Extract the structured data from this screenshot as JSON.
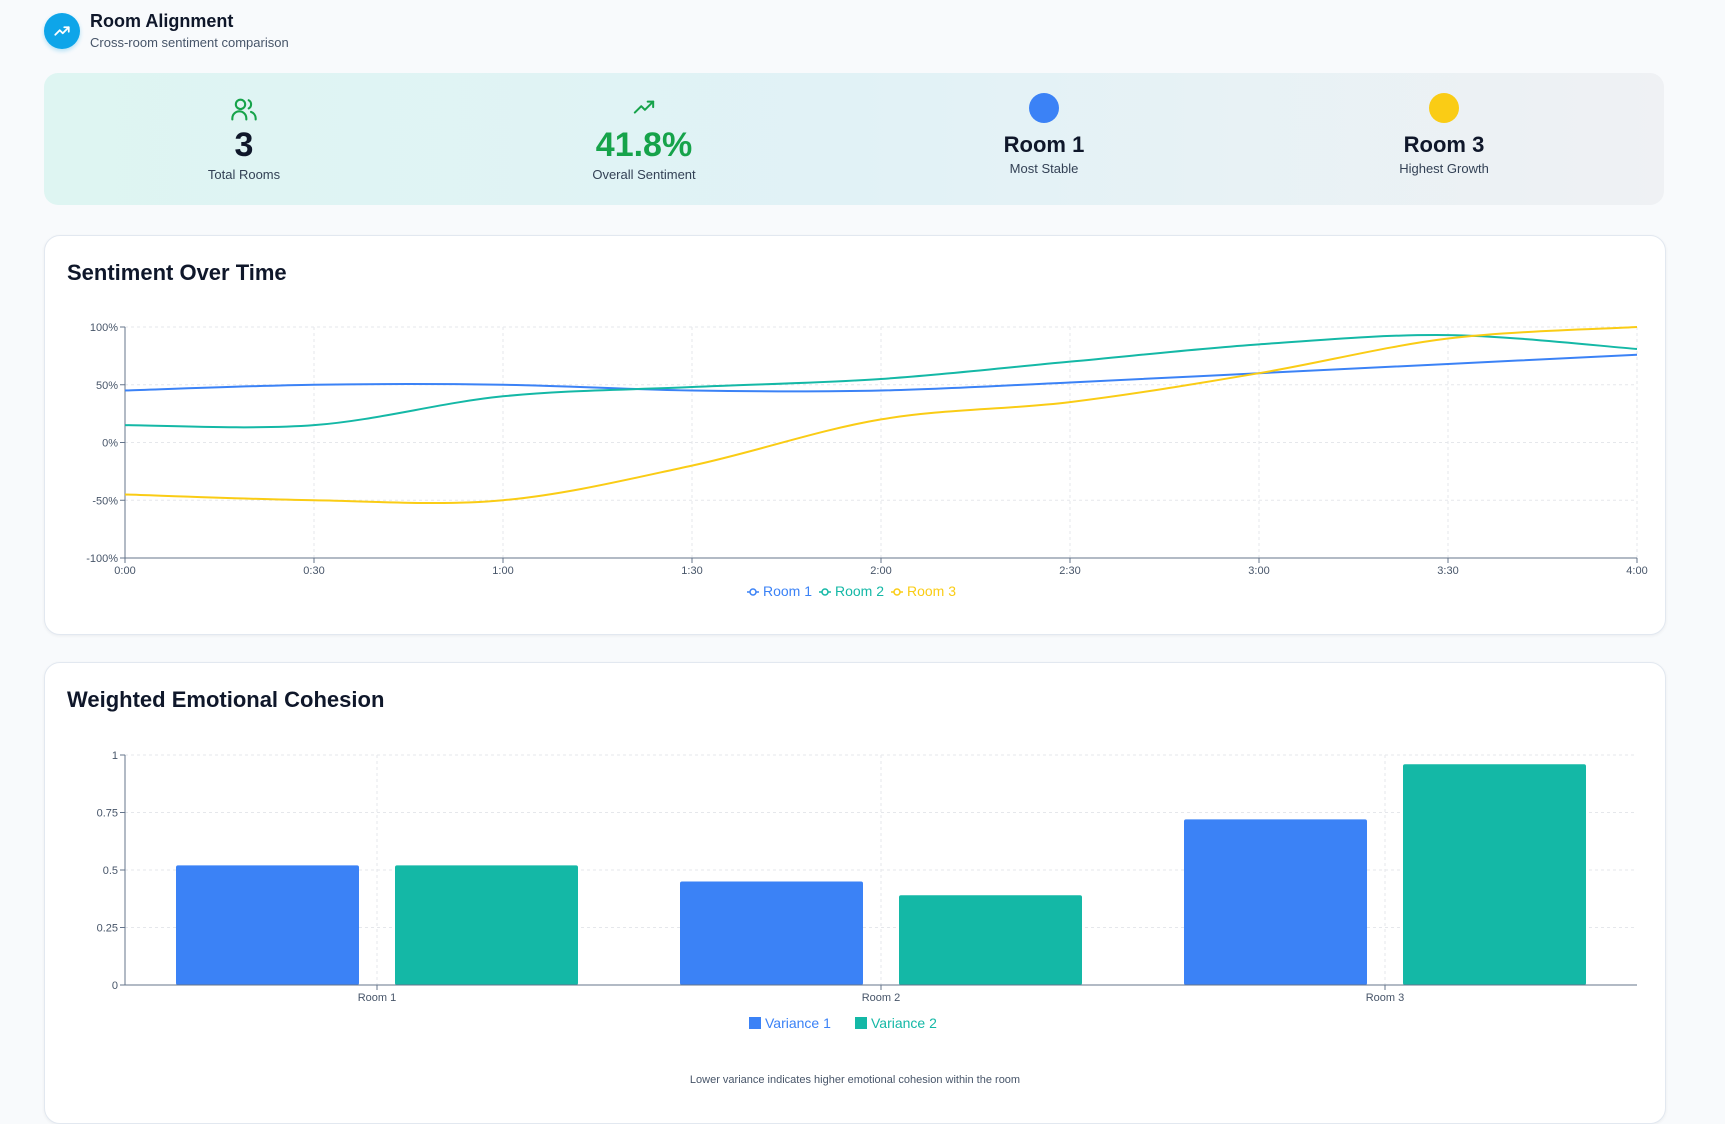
{
  "header": {
    "title": "Room Alignment",
    "subtitle": "Cross-room sentiment comparison"
  },
  "stats": {
    "total_rooms": {
      "value": "3",
      "label": "Total Rooms"
    },
    "overall_sentiment": {
      "value": "41.8%",
      "label": "Overall Sentiment"
    },
    "most_stable": {
      "value": "Room 1",
      "label": "Most Stable",
      "color": "#3b82f6"
    },
    "highest_growth": {
      "value": "Room 3",
      "label": "Highest Growth",
      "color": "#facc15"
    }
  },
  "sentiment_card": {
    "title": "Sentiment Over Time"
  },
  "cohesion_card": {
    "title": "Weighted Emotional Cohesion",
    "footnote": "Lower variance indicates higher emotional cohesion within the room"
  },
  "colors": {
    "blue": "#3b82f6",
    "teal": "#14b8a6",
    "yellow": "#facc15",
    "green": "#16a34a"
  },
  "chart_data": [
    {
      "type": "line",
      "x": [
        "0:00",
        "0:30",
        "1:00",
        "1:30",
        "2:00",
        "2:30",
        "3:00",
        "3:30",
        "4:00"
      ],
      "yticks": [
        "100%",
        "50%",
        "0%",
        "-50%",
        "-100%"
      ],
      "ylim": [
        -100,
        100
      ],
      "series": [
        {
          "name": "Room 1",
          "color": "#3b82f6",
          "values": [
            45,
            50,
            50,
            45,
            45,
            52,
            60,
            68,
            76
          ]
        },
        {
          "name": "Room 2",
          "color": "#14b8a6",
          "values": [
            15,
            15,
            40,
            48,
            55,
            70,
            85,
            93,
            81
          ]
        },
        {
          "name": "Room 3",
          "color": "#facc15",
          "values": [
            -45,
            -50,
            -50,
            -20,
            20,
            35,
            60,
            90,
            100
          ]
        }
      ],
      "grid": true,
      "legend": "bottom-center"
    },
    {
      "type": "bar",
      "categories": [
        "Room 1",
        "Room 2",
        "Room 3"
      ],
      "yticks": [
        "1",
        "0.75",
        "0.5",
        "0.25",
        "0"
      ],
      "ylim": [
        0,
        1
      ],
      "series": [
        {
          "name": "Variance 1",
          "color": "#3b82f6",
          "values": [
            0.52,
            0.45,
            0.72
          ]
        },
        {
          "name": "Variance 2",
          "color": "#14b8a6",
          "values": [
            0.52,
            0.39,
            0.96
          ]
        }
      ],
      "grid": true,
      "legend": "bottom-center"
    }
  ]
}
